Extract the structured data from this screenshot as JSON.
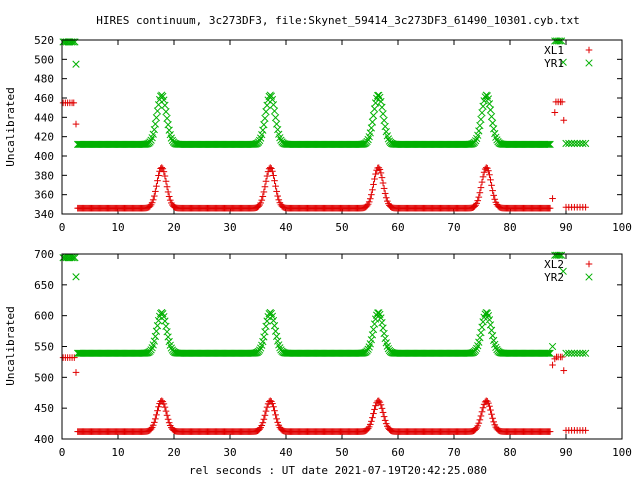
{
  "title": "HIRES continuum, 3c273DF3, file:Skynet_59414_3c273DF3_61490_10301.cyb.txt",
  "xlabel": "rel seconds : UT date 2021-07-19T20:42:25.080",
  "colors": {
    "red": "#e00000",
    "green": "#00b000"
  },
  "chart_data": [
    {
      "type": "scatter",
      "ylabel": "Uncalibrated",
      "xlim": [
        0,
        100
      ],
      "ylim": [
        340,
        520
      ],
      "xticks": [
        0,
        10,
        20,
        30,
        40,
        50,
        60,
        70,
        80,
        90,
        100
      ],
      "yticks": [
        340,
        360,
        380,
        400,
        420,
        440,
        460,
        480,
        500,
        520
      ],
      "legend_position": "top-right",
      "peaks": [
        17.8,
        37.2,
        56.5,
        75.8
      ],
      "series": [
        {
          "name": "XL1",
          "marker": "plus",
          "color": "#e00000",
          "baseline": 346,
          "peak_height": 42,
          "peak_width": 0.85,
          "x_range": [
            2.8,
            87.3
          ],
          "step": 0.19,
          "extra": [
            [
              0.2,
              455
            ],
            [
              0.6,
              455
            ],
            [
              1.0,
              455
            ],
            [
              1.4,
              455
            ],
            [
              1.8,
              455
            ],
            [
              2.1,
              455
            ],
            [
              2.5,
              433
            ],
            [
              87.6,
              356
            ],
            [
              88.0,
              445
            ],
            [
              88.2,
              456
            ],
            [
              88.6,
              456
            ],
            [
              89.0,
              456
            ],
            [
              89.3,
              456
            ],
            [
              89.6,
              437
            ],
            [
              90.0,
              347
            ],
            [
              90.5,
              347
            ],
            [
              91.0,
              347
            ],
            [
              91.5,
              347
            ],
            [
              92.0,
              347
            ],
            [
              92.5,
              347
            ],
            [
              93.0,
              347
            ],
            [
              93.5,
              347
            ]
          ]
        },
        {
          "name": "YR1",
          "marker": "cross",
          "color": "#00b000",
          "baseline": 412,
          "peak_height": 51,
          "peak_width": 0.85,
          "x_range": [
            2.8,
            87.3
          ],
          "step": 0.19,
          "extra": [
            [
              0.2,
              518
            ],
            [
              0.5,
              518
            ],
            [
              0.8,
              518
            ],
            [
              1.1,
              518
            ],
            [
              1.4,
              518
            ],
            [
              1.7,
              518
            ],
            [
              2.0,
              518
            ],
            [
              2.3,
              518
            ],
            [
              2.5,
              495
            ],
            [
              88.0,
              519
            ],
            [
              88.3,
              519
            ],
            [
              88.6,
              519
            ],
            [
              88.9,
              519
            ],
            [
              89.2,
              519
            ],
            [
              89.5,
              497
            ],
            [
              90.0,
              413
            ],
            [
              90.5,
              413
            ],
            [
              91.0,
              413
            ],
            [
              91.5,
              413
            ],
            [
              92.0,
              413
            ],
            [
              92.5,
              413
            ],
            [
              93.0,
              413
            ],
            [
              93.5,
              413
            ]
          ]
        }
      ]
    },
    {
      "type": "scatter",
      "ylabel": "Uncalibrated",
      "xlim": [
        0,
        100
      ],
      "ylim": [
        400,
        700
      ],
      "xticks": [
        0,
        10,
        20,
        30,
        40,
        50,
        60,
        70,
        80,
        90,
        100
      ],
      "yticks": [
        400,
        450,
        500,
        550,
        600,
        650,
        700
      ],
      "legend_position": "top-right",
      "peaks": [
        17.8,
        37.2,
        56.5,
        75.8
      ],
      "series": [
        {
          "name": "XL2",
          "marker": "plus",
          "color": "#e00000",
          "baseline": 412,
          "peak_height": 50,
          "peak_width": 0.85,
          "x_range": [
            2.8,
            87.3
          ],
          "step": 0.19,
          "extra": [
            [
              0.2,
              532
            ],
            [
              0.6,
              532
            ],
            [
              1.0,
              532
            ],
            [
              1.4,
              532
            ],
            [
              1.8,
              532
            ],
            [
              2.2,
              532
            ],
            [
              2.5,
              508
            ],
            [
              87.6,
              520
            ],
            [
              88.0,
              530
            ],
            [
              88.3,
              533
            ],
            [
              88.6,
              533
            ],
            [
              89.0,
              533
            ],
            [
              89.3,
              533
            ],
            [
              89.6,
              511
            ],
            [
              90.0,
              414
            ],
            [
              90.5,
              414
            ],
            [
              91.0,
              414
            ],
            [
              91.5,
              414
            ],
            [
              92.0,
              414
            ],
            [
              92.5,
              414
            ],
            [
              93.0,
              414
            ],
            [
              93.5,
              414
            ]
          ]
        },
        {
          "name": "YR2",
          "marker": "cross",
          "color": "#00b000",
          "baseline": 539,
          "peak_height": 66,
          "peak_width": 0.85,
          "x_range": [
            2.8,
            87.3
          ],
          "step": 0.19,
          "extra": [
            [
              0.2,
              694
            ],
            [
              0.5,
              694
            ],
            [
              0.8,
              694
            ],
            [
              1.1,
              694
            ],
            [
              1.4,
              694
            ],
            [
              1.7,
              694
            ],
            [
              2.0,
              694
            ],
            [
              2.3,
              694
            ],
            [
              2.5,
              663
            ],
            [
              87.6,
              550
            ],
            [
              88.0,
              698
            ],
            [
              88.3,
              698
            ],
            [
              88.6,
              698
            ],
            [
              88.9,
              698
            ],
            [
              89.2,
              698
            ],
            [
              89.5,
              672
            ],
            [
              90.0,
              539
            ],
            [
              90.5,
              539
            ],
            [
              91.0,
              539
            ],
            [
              91.5,
              539
            ],
            [
              92.0,
              539
            ],
            [
              92.5,
              539
            ],
            [
              93.0,
              539
            ],
            [
              93.5,
              539
            ]
          ]
        }
      ]
    }
  ]
}
